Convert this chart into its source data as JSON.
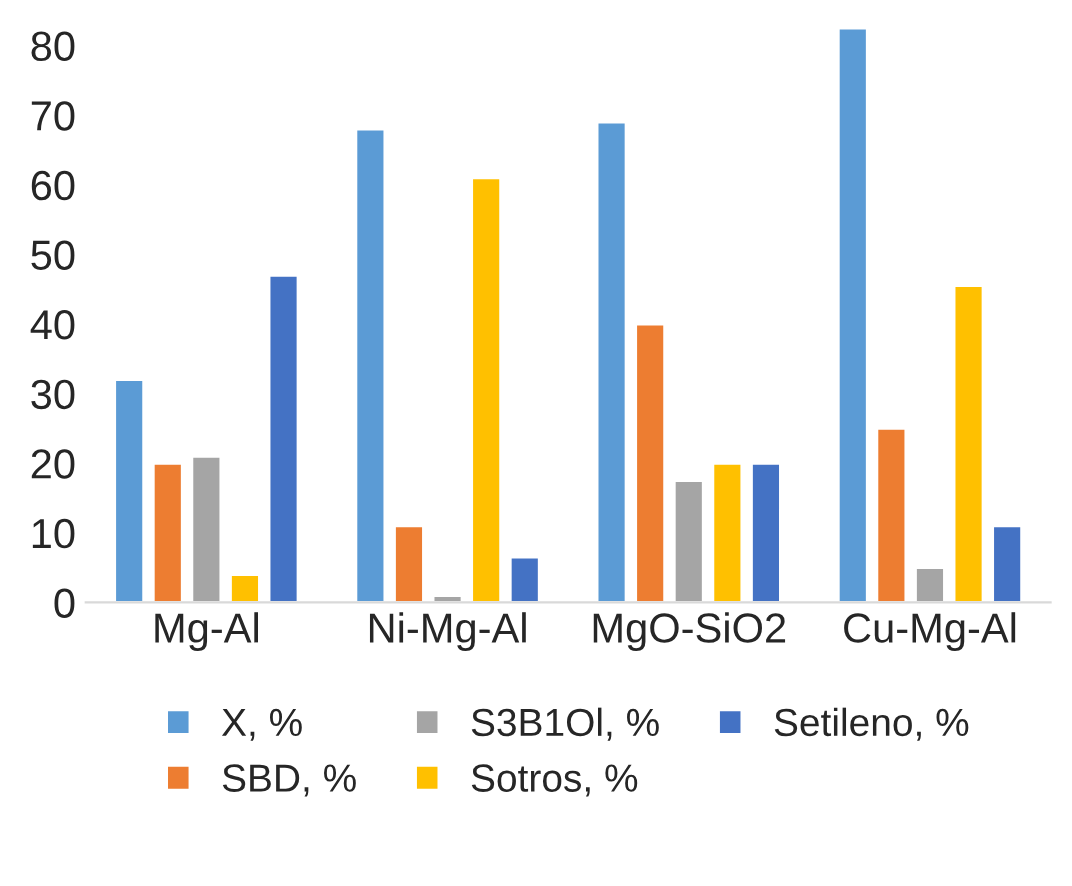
{
  "chart_data": {
    "type": "bar",
    "categories": [
      "Mg-Al",
      "Ni-Mg-Al",
      "MgO-SiO2",
      "Cu-Mg-Al"
    ],
    "series": [
      {
        "name": "X, %",
        "color": "#5b9bd5",
        "values": [
          32,
          68,
          69,
          82.5
        ]
      },
      {
        "name": "SBD, %",
        "color": "#ed7d31",
        "values": [
          20,
          11,
          40,
          25
        ]
      },
      {
        "name": "S3B1Ol, %",
        "color": "#a5a5a5",
        "values": [
          21,
          1,
          17.5,
          5
        ]
      },
      {
        "name": "Sotros, %",
        "color": "#ffc000",
        "values": [
          4,
          61,
          20,
          45.5
        ]
      },
      {
        "name": "Setileno, %",
        "color": "#4472c4",
        "values": [
          47,
          6.5,
          20,
          11
        ]
      }
    ],
    "ylim": [
      0,
      84
    ],
    "yticks": [
      0,
      10,
      20,
      30,
      40,
      50,
      60,
      70,
      80
    ],
    "grid": false,
    "legend": "bottom"
  }
}
